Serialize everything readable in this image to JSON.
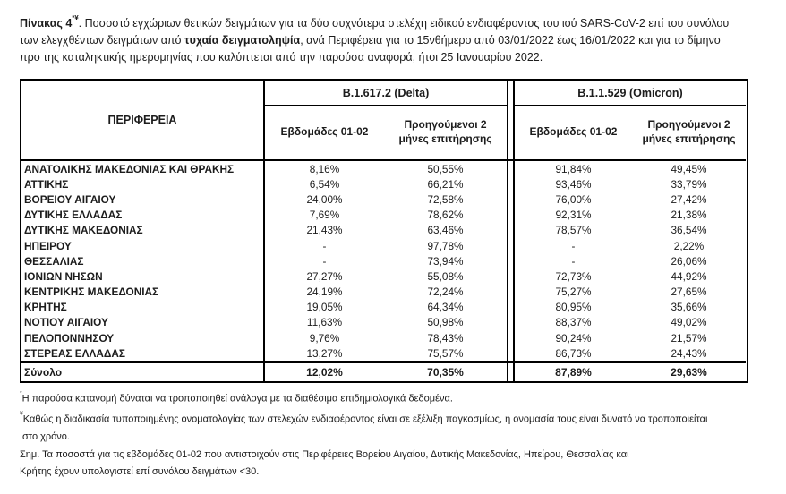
{
  "caption": {
    "table_number": "Πίνακας 4",
    "superscript": "*¥",
    "seg1": ". Ποσοστό εγχώριων θετικών δειγμάτων για τα δύο συχνότερα στελέχη ειδικού ενδιαφέροντος του ιού SARS-CoV-2 επί του συνόλου",
    "seg2": "των ελεγχθέντων δειγμάτων από ",
    "bold2": "τυχαία δειγματοληψία",
    "seg3": ", ανά Περιφέρεια για το 15νθήμερο από 03/01/2022 έως 16/01/2022 και για το δίμηνο",
    "seg4": "προ της καταληκτικής ημερομηνίας που καλύπτεται από την παρούσα αναφορά, ήτοι 25 Ιανουαρίου 2022."
  },
  "table": {
    "region_header": "ΠΕΡΙΦΕΡΕΙΑ",
    "groups": {
      "delta": "B.1.617.2 (Delta)",
      "omicron": "B.1.1.529 (Omicron)"
    },
    "subheaders": {
      "weeks": "Εβδομάδες 01-02",
      "prev": "Προηγούμενοι 2 μήνες επιτήρησης"
    },
    "rows": [
      {
        "region": "ΑΝΑΤΟΛΙΚΗΣ ΜΑΚΕΔΟΝΙΑΣ ΚΑΙ ΘΡΑΚΗΣ",
        "delta_weeks": "8,16%",
        "delta_prev": "50,55%",
        "omicron_weeks": "91,84%",
        "omicron_prev": "49,45%"
      },
      {
        "region": "ΑΤΤΙΚΗΣ",
        "delta_weeks": "6,54%",
        "delta_prev": "66,21%",
        "omicron_weeks": "93,46%",
        "omicron_prev": "33,79%"
      },
      {
        "region": "ΒΟΡΕΙΟΥ ΑΙΓΑΙΟΥ",
        "delta_weeks": "24,00%",
        "delta_prev": "72,58%",
        "omicron_weeks": "76,00%",
        "omicron_prev": "27,42%"
      },
      {
        "region": "ΔΥΤΙΚΗΣ ΕΛΛΑΔΑΣ",
        "delta_weeks": "7,69%",
        "delta_prev": "78,62%",
        "omicron_weeks": "92,31%",
        "omicron_prev": "21,38%"
      },
      {
        "region": "ΔΥΤΙΚΗΣ ΜΑΚΕΔΟΝΙΑΣ",
        "delta_weeks": "21,43%",
        "delta_prev": "63,46%",
        "omicron_weeks": "78,57%",
        "omicron_prev": "36,54%"
      },
      {
        "region": "ΗΠΕΙΡΟΥ",
        "delta_weeks": "-",
        "delta_prev": "97,78%",
        "omicron_weeks": "-",
        "omicron_prev": "2,22%"
      },
      {
        "region": "ΘΕΣΣΑΛΙΑΣ",
        "delta_weeks": "-",
        "delta_prev": "73,94%",
        "omicron_weeks": "-",
        "omicron_prev": "26,06%"
      },
      {
        "region": "ΙΟΝΙΩΝ ΝΗΣΩΝ",
        "delta_weeks": "27,27%",
        "delta_prev": "55,08%",
        "omicron_weeks": "72,73%",
        "omicron_prev": "44,92%"
      },
      {
        "region": "ΚΕΝΤΡΙΚΗΣ ΜΑΚΕΔΟΝΙΑΣ",
        "delta_weeks": "24,19%",
        "delta_prev": "72,24%",
        "omicron_weeks": "75,27%",
        "omicron_prev": "27,65%"
      },
      {
        "region": "ΚΡΗΤΗΣ",
        "delta_weeks": "19,05%",
        "delta_prev": "64,34%",
        "omicron_weeks": "80,95%",
        "omicron_prev": "35,66%"
      },
      {
        "region": "ΝΟΤΙΟΥ ΑΙΓΑΙΟΥ",
        "delta_weeks": "11,63%",
        "delta_prev": "50,98%",
        "omicron_weeks": "88,37%",
        "omicron_prev": "49,02%"
      },
      {
        "region": "ΠΕΛΟΠΟΝΝΗΣΟΥ",
        "delta_weeks": "9,76%",
        "delta_prev": "78,43%",
        "omicron_weeks": "90,24%",
        "omicron_prev": "21,57%"
      },
      {
        "region": "ΣΤΕΡΕΑΣ ΕΛΛΑΔΑΣ",
        "delta_weeks": "13,27%",
        "delta_prev": "75,57%",
        "omicron_weeks": "86,73%",
        "omicron_prev": "24,43%"
      }
    ],
    "total": {
      "label": "Σύνολο",
      "delta_weeks": "12,02%",
      "delta_prev": "70,35%",
      "omicron_weeks": "87,89%",
      "omicron_prev": "29,63%"
    }
  },
  "footnotes": {
    "f1_sup": "*",
    "f1_text": "Η παρούσα κατανομή δύναται να τροποποιηθεί ανάλογα με τα διαθέσιμα επιδημιολογικά δεδομένα.",
    "f2_sup": "¥",
    "f2_line1": "Καθώς η διαδικασία τυποποιημένης ονοματολογίας των στελεχών ενδιαφέροντος είναι σε εξέλιξη παγκοσμίως, η ονομασία τους είναι δυνατό να τροποποιείται",
    "f2_line2": "στο χρόνο.",
    "f3_line1": "Σημ. Τα ποσοστά για τις εβδομάδες 01-02 που αντιστοιχούν στις Περιφέρειες Βορείου Αιγαίου, Δυτικής Μακεδονίας, Ηπείρου, Θεσσαλίας και",
    "f3_line2": "Κρήτης έχουν υπολογιστεί επί συνόλου δειγμάτων <30."
  }
}
